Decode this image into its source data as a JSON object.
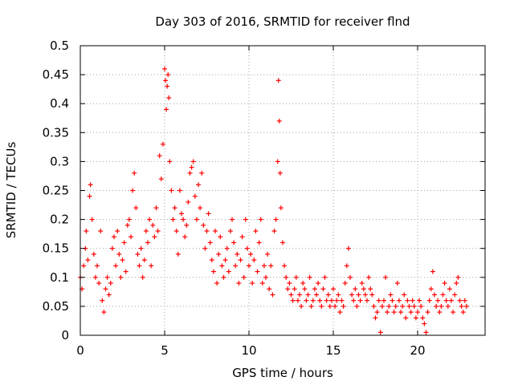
{
  "chart_data": {
    "type": "scatter",
    "title": "Day 303 of 2016, SRMTID for receiver flnd",
    "xlabel": "GPS time / hours",
    "ylabel": "SRMTID / TECUs",
    "xlim": [
      0,
      24
    ],
    "ylim": [
      0,
      0.5
    ],
    "xticks": [
      0,
      5,
      10,
      15,
      20
    ],
    "xtick_labels": [
      "0",
      "5",
      "10",
      "15",
      "20"
    ],
    "yticks": [
      0,
      0.05,
      0.1,
      0.15,
      0.2,
      0.25,
      0.3,
      0.35,
      0.4,
      0.45,
      0.5
    ],
    "ytick_labels": [
      "0",
      "0.05",
      "0.1",
      "0.15",
      "0.2",
      "0.25",
      "0.3",
      "0.35",
      "0.4",
      "0.45",
      "0.5"
    ],
    "grid": true,
    "marker": "plus",
    "color": "#ff0000",
    "series": [
      {
        "name": "SRMTID",
        "points": [
          [
            0.0,
            0.1
          ],
          [
            0.1,
            0.08
          ],
          [
            0.2,
            0.12
          ],
          [
            0.3,
            0.15
          ],
          [
            0.35,
            0.18
          ],
          [
            0.45,
            0.13
          ],
          [
            0.55,
            0.24
          ],
          [
            0.6,
            0.26
          ],
          [
            0.7,
            0.2
          ],
          [
            0.8,
            0.14
          ],
          [
            0.9,
            0.1
          ],
          [
            1.0,
            0.12
          ],
          [
            1.1,
            0.09
          ],
          [
            1.2,
            0.18
          ],
          [
            1.3,
            0.06
          ],
          [
            1.4,
            0.04
          ],
          [
            1.5,
            0.08
          ],
          [
            1.6,
            0.1
          ],
          [
            1.7,
            0.07
          ],
          [
            1.8,
            0.09
          ],
          [
            1.9,
            0.15
          ],
          [
            2.0,
            0.17
          ],
          [
            2.1,
            0.12
          ],
          [
            2.2,
            0.18
          ],
          [
            2.3,
            0.14
          ],
          [
            2.4,
            0.1
          ],
          [
            2.5,
            0.13
          ],
          [
            2.6,
            0.16
          ],
          [
            2.7,
            0.11
          ],
          [
            2.8,
            0.19
          ],
          [
            2.9,
            0.2
          ],
          [
            3.0,
            0.17
          ],
          [
            3.1,
            0.25
          ],
          [
            3.2,
            0.28
          ],
          [
            3.3,
            0.22
          ],
          [
            3.4,
            0.14
          ],
          [
            3.5,
            0.12
          ],
          [
            3.6,
            0.15
          ],
          [
            3.7,
            0.1
          ],
          [
            3.8,
            0.13
          ],
          [
            3.9,
            0.18
          ],
          [
            4.0,
            0.16
          ],
          [
            4.1,
            0.2
          ],
          [
            4.2,
            0.12
          ],
          [
            4.3,
            0.19
          ],
          [
            4.4,
            0.17
          ],
          [
            4.5,
            0.22
          ],
          [
            4.6,
            0.18
          ],
          [
            4.7,
            0.31
          ],
          [
            4.8,
            0.27
          ],
          [
            4.9,
            0.33
          ],
          [
            5.0,
            0.46
          ],
          [
            5.05,
            0.44
          ],
          [
            5.1,
            0.39
          ],
          [
            5.15,
            0.43
          ],
          [
            5.2,
            0.45
          ],
          [
            5.25,
            0.41
          ],
          [
            5.3,
            0.3
          ],
          [
            5.4,
            0.25
          ],
          [
            5.5,
            0.2
          ],
          [
            5.6,
            0.22
          ],
          [
            5.7,
            0.18
          ],
          [
            5.8,
            0.14
          ],
          [
            5.9,
            0.25
          ],
          [
            6.0,
            0.21
          ],
          [
            6.1,
            0.2
          ],
          [
            6.2,
            0.17
          ],
          [
            6.3,
            0.19
          ],
          [
            6.4,
            0.23
          ],
          [
            6.5,
            0.28
          ],
          [
            6.6,
            0.29
          ],
          [
            6.7,
            0.3
          ],
          [
            6.8,
            0.24
          ],
          [
            6.9,
            0.2
          ],
          [
            7.0,
            0.26
          ],
          [
            7.1,
            0.22
          ],
          [
            7.2,
            0.28
          ],
          [
            7.3,
            0.19
          ],
          [
            7.4,
            0.15
          ],
          [
            7.5,
            0.18
          ],
          [
            7.6,
            0.21
          ],
          [
            7.7,
            0.16
          ],
          [
            7.8,
            0.13
          ],
          [
            7.9,
            0.11
          ],
          [
            8.0,
            0.18
          ],
          [
            8.1,
            0.09
          ],
          [
            8.2,
            0.14
          ],
          [
            8.3,
            0.17
          ],
          [
            8.4,
            0.12
          ],
          [
            8.5,
            0.1
          ],
          [
            8.6,
            0.13
          ],
          [
            8.7,
            0.15
          ],
          [
            8.8,
            0.11
          ],
          [
            8.9,
            0.18
          ],
          [
            9.0,
            0.2
          ],
          [
            9.1,
            0.16
          ],
          [
            9.2,
            0.12
          ],
          [
            9.3,
            0.14
          ],
          [
            9.4,
            0.09
          ],
          [
            9.5,
            0.13
          ],
          [
            9.6,
            0.17
          ],
          [
            9.7,
            0.1
          ],
          [
            9.8,
            0.2
          ],
          [
            9.9,
            0.15
          ],
          [
            10.0,
            0.12
          ],
          [
            10.1,
            0.14
          ],
          [
            10.2,
            0.09
          ],
          [
            10.3,
            0.13
          ],
          [
            10.4,
            0.18
          ],
          [
            10.5,
            0.11
          ],
          [
            10.6,
            0.16
          ],
          [
            10.7,
            0.2
          ],
          [
            10.8,
            0.09
          ],
          [
            10.9,
            0.12
          ],
          [
            11.0,
            0.1
          ],
          [
            11.1,
            0.14
          ],
          [
            11.2,
            0.08
          ],
          [
            11.3,
            0.12
          ],
          [
            11.4,
            0.07
          ],
          [
            11.5,
            0.18
          ],
          [
            11.6,
            0.2
          ],
          [
            11.7,
            0.3
          ],
          [
            11.75,
            0.44
          ],
          [
            11.8,
            0.37
          ],
          [
            11.85,
            0.28
          ],
          [
            11.9,
            0.22
          ],
          [
            12.0,
            0.16
          ],
          [
            12.1,
            0.12
          ],
          [
            12.2,
            0.1
          ],
          [
            12.3,
            0.08
          ],
          [
            12.4,
            0.09
          ],
          [
            12.5,
            0.07
          ],
          [
            12.6,
            0.06
          ],
          [
            12.7,
            0.08
          ],
          [
            12.8,
            0.1
          ],
          [
            12.9,
            0.06
          ],
          [
            13.0,
            0.07
          ],
          [
            13.1,
            0.05
          ],
          [
            13.2,
            0.09
          ],
          [
            13.3,
            0.08
          ],
          [
            13.4,
            0.06
          ],
          [
            13.5,
            0.07
          ],
          [
            13.6,
            0.1
          ],
          [
            13.7,
            0.05
          ],
          [
            13.8,
            0.06
          ],
          [
            13.9,
            0.08
          ],
          [
            14.0,
            0.07
          ],
          [
            14.1,
            0.09
          ],
          [
            14.2,
            0.06
          ],
          [
            14.3,
            0.05
          ],
          [
            14.4,
            0.08
          ],
          [
            14.5,
            0.1
          ],
          [
            14.6,
            0.06
          ],
          [
            14.7,
            0.07
          ],
          [
            14.8,
            0.05
          ],
          [
            14.9,
            0.06
          ],
          [
            15.0,
            0.08
          ],
          [
            15.1,
            0.05
          ],
          [
            15.2,
            0.06
          ],
          [
            15.3,
            0.07
          ],
          [
            15.4,
            0.04
          ],
          [
            15.5,
            0.06
          ],
          [
            15.6,
            0.05
          ],
          [
            15.7,
            0.09
          ],
          [
            15.8,
            0.12
          ],
          [
            15.9,
            0.15
          ],
          [
            16.0,
            0.1
          ],
          [
            16.1,
            0.07
          ],
          [
            16.2,
            0.06
          ],
          [
            16.3,
            0.08
          ],
          [
            16.4,
            0.05
          ],
          [
            16.5,
            0.07
          ],
          [
            16.6,
            0.06
          ],
          [
            16.7,
            0.09
          ],
          [
            16.8,
            0.08
          ],
          [
            16.9,
            0.07
          ],
          [
            17.0,
            0.06
          ],
          [
            17.1,
            0.1
          ],
          [
            17.2,
            0.08
          ],
          [
            17.3,
            0.07
          ],
          [
            17.4,
            0.05
          ],
          [
            17.5,
            0.03
          ],
          [
            17.6,
            0.04
          ],
          [
            17.7,
            0.06
          ],
          [
            17.8,
            0.005
          ],
          [
            17.9,
            0.05
          ],
          [
            18.0,
            0.06
          ],
          [
            18.1,
            0.1
          ],
          [
            18.2,
            0.04
          ],
          [
            18.3,
            0.05
          ],
          [
            18.4,
            0.07
          ],
          [
            18.5,
            0.06
          ],
          [
            18.6,
            0.04
          ],
          [
            18.7,
            0.05
          ],
          [
            18.8,
            0.09
          ],
          [
            18.9,
            0.06
          ],
          [
            19.0,
            0.04
          ],
          [
            19.1,
            0.05
          ],
          [
            19.2,
            0.07
          ],
          [
            19.3,
            0.03
          ],
          [
            19.4,
            0.06
          ],
          [
            19.5,
            0.05
          ],
          [
            19.6,
            0.04
          ],
          [
            19.7,
            0.06
          ],
          [
            19.8,
            0.05
          ],
          [
            19.9,
            0.03
          ],
          [
            20.0,
            0.04
          ],
          [
            20.1,
            0.06
          ],
          [
            20.2,
            0.05
          ],
          [
            20.3,
            0.03
          ],
          [
            20.4,
            0.02
          ],
          [
            20.5,
            0.005
          ],
          [
            20.6,
            0.04
          ],
          [
            20.7,
            0.06
          ],
          [
            20.8,
            0.08
          ],
          [
            20.9,
            0.11
          ],
          [
            21.0,
            0.07
          ],
          [
            21.1,
            0.05
          ],
          [
            21.2,
            0.06
          ],
          [
            21.3,
            0.04
          ],
          [
            21.4,
            0.05
          ],
          [
            21.5,
            0.07
          ],
          [
            21.6,
            0.09
          ],
          [
            21.7,
            0.06
          ],
          [
            21.8,
            0.05
          ],
          [
            21.9,
            0.08
          ],
          [
            22.0,
            0.06
          ],
          [
            22.1,
            0.04
          ],
          [
            22.2,
            0.07
          ],
          [
            22.3,
            0.09
          ],
          [
            22.4,
            0.1
          ],
          [
            22.5,
            0.06
          ],
          [
            22.6,
            0.05
          ],
          [
            22.7,
            0.04
          ],
          [
            22.8,
            0.06
          ],
          [
            22.9,
            0.05
          ]
        ]
      }
    ]
  }
}
